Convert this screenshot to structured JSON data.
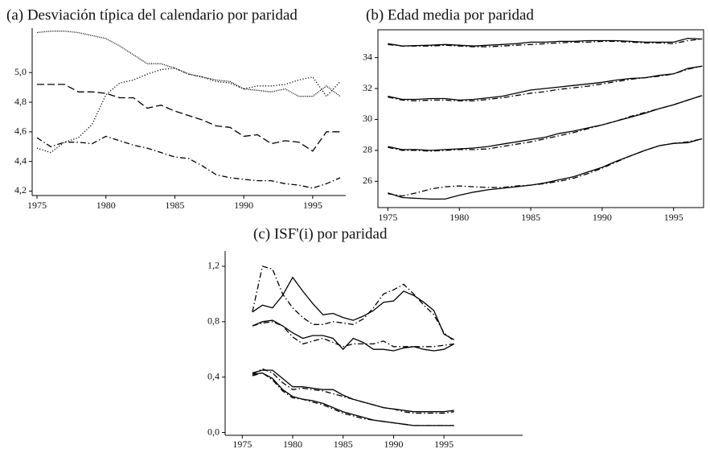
{
  "chart_data": [
    {
      "type": "line",
      "title": "(a) Desviación típica del calendario por paridad",
      "frame": false,
      "x": [
        1975,
        1976,
        1977,
        1978,
        1979,
        1980,
        1981,
        1982,
        1983,
        1984,
        1985,
        1986,
        1987,
        1988,
        1989,
        1990,
        1991,
        1992,
        1993,
        1994,
        1995,
        1996,
        1997
      ],
      "xlim": [
        1974.65,
        1997.4
      ],
      "xticks": [
        1975,
        1980,
        1985,
        1990,
        1995
      ],
      "ylim": [
        4.17,
        5.3
      ],
      "yticks": [
        {
          "value": 4.2,
          "label": "4,2"
        },
        {
          "value": 4.4,
          "label": "4,4"
        },
        {
          "value": 4.6,
          "label": "4,6"
        },
        {
          "value": 4.8,
          "label": "4,8"
        },
        {
          "value": 5.0,
          "label": "5,0"
        }
      ],
      "series": [
        {
          "color": "#000000",
          "dash": "densedot",
          "values": [
            5.27,
            5.28,
            5.28,
            5.27,
            5.25,
            5.23,
            5.18,
            5.12,
            5.06,
            5.06,
            5.03,
            4.99,
            4.97,
            4.95,
            4.94,
            4.89,
            4.88,
            4.87,
            4.89,
            4.84,
            4.84,
            4.91,
            4.84
          ]
        },
        {
          "color": "#000000",
          "dash": "dotted",
          "values": [
            4.49,
            4.46,
            4.53,
            4.56,
            4.65,
            4.85,
            4.93,
            4.95,
            4.99,
            5.02,
            5.03,
            4.99,
            4.97,
            4.94,
            4.93,
            4.89,
            4.91,
            4.91,
            4.92,
            4.95,
            4.97,
            4.84,
            4.94
          ]
        },
        {
          "color": "#000000",
          "dash": "dashed",
          "values": [
            4.92,
            4.92,
            4.92,
            4.87,
            4.87,
            4.86,
            4.83,
            4.83,
            4.76,
            4.78,
            4.74,
            4.71,
            4.68,
            4.64,
            4.63,
            4.57,
            4.58,
            4.52,
            4.54,
            4.53,
            4.47,
            4.6,
            4.6
          ]
        },
        {
          "color": "#000000",
          "dash": "dashdot",
          "values": [
            4.56,
            4.5,
            4.53,
            4.53,
            4.52,
            4.57,
            4.54,
            4.51,
            4.49,
            4.46,
            4.43,
            4.42,
            4.37,
            4.31,
            4.29,
            4.28,
            4.27,
            4.27,
            4.25,
            4.24,
            4.22,
            4.25,
            4.29
          ]
        }
      ]
    },
    {
      "type": "line",
      "title": "(b) Edad media por paridad",
      "frame": true,
      "x": [
        1975,
        1976,
        1977,
        1978,
        1979,
        1980,
        1981,
        1982,
        1983,
        1984,
        1985,
        1986,
        1987,
        1988,
        1989,
        1990,
        1991,
        1992,
        1993,
        1994,
        1995,
        1996,
        1997
      ],
      "xlim": [
        1974.3,
        1997.1
      ],
      "xticks": [
        1975,
        1980,
        1985,
        1990,
        1995
      ],
      "ylim": [
        24.3,
        35.8
      ],
      "yticks": [
        26,
        28,
        30,
        32,
        34
      ],
      "series": [
        {
          "color": "#000000",
          "dash": "solid",
          "values": [
            34.9,
            34.75,
            34.78,
            34.8,
            34.85,
            34.8,
            34.75,
            34.8,
            34.85,
            34.9,
            35.0,
            35.0,
            35.05,
            35.05,
            35.1,
            35.1,
            35.1,
            35.05,
            35.0,
            35.0,
            35.0,
            35.25,
            35.2
          ]
        },
        {
          "color": "#000000",
          "dash": "dashdot",
          "values": [
            34.85,
            34.75,
            34.75,
            34.75,
            34.8,
            34.75,
            34.7,
            34.7,
            34.75,
            34.8,
            34.85,
            34.9,
            34.95,
            35.0,
            35.0,
            35.05,
            35.05,
            35.0,
            34.95,
            34.95,
            34.9,
            35.1,
            35.2
          ]
        },
        {
          "color": "#000000",
          "dash": "solid",
          "values": [
            31.5,
            31.3,
            31.3,
            31.35,
            31.35,
            31.25,
            31.3,
            31.4,
            31.5,
            31.7,
            31.9,
            32.0,
            32.1,
            32.2,
            32.3,
            32.4,
            32.55,
            32.65,
            32.7,
            32.85,
            32.95,
            33.3,
            33.45
          ]
        },
        {
          "color": "#000000",
          "dash": "dashdot",
          "values": [
            31.45,
            31.25,
            31.2,
            31.25,
            31.25,
            31.2,
            31.2,
            31.3,
            31.4,
            31.55,
            31.7,
            31.8,
            31.95,
            32.05,
            32.15,
            32.3,
            32.45,
            32.6,
            32.7,
            32.8,
            32.95,
            33.25,
            33.45
          ]
        },
        {
          "color": "#000000",
          "dash": "solid",
          "values": [
            28.25,
            28.05,
            28.05,
            28.0,
            28.05,
            28.1,
            28.15,
            28.25,
            28.4,
            28.55,
            28.7,
            28.85,
            29.1,
            29.25,
            29.45,
            29.65,
            29.9,
            30.15,
            30.4,
            30.7,
            30.95,
            31.25,
            31.55
          ]
        },
        {
          "color": "#000000",
          "dash": "dashdot",
          "values": [
            28.2,
            28.0,
            28.0,
            27.95,
            28.0,
            28.05,
            28.05,
            28.1,
            28.25,
            28.4,
            28.55,
            28.75,
            28.95,
            29.15,
            29.4,
            29.65,
            29.9,
            30.2,
            30.45,
            30.7,
            30.95,
            31.25,
            31.55
          ]
        },
        {
          "color": "#000000",
          "dash": "solid",
          "values": [
            25.25,
            24.95,
            24.9,
            24.85,
            24.85,
            25.1,
            25.3,
            25.45,
            25.55,
            25.65,
            25.75,
            25.9,
            26.1,
            26.3,
            26.6,
            26.9,
            27.3,
            27.65,
            28.0,
            28.3,
            28.45,
            28.5,
            28.75
          ]
        },
        {
          "color": "#000000",
          "dash": "dashdot",
          "values": [
            25.2,
            25.05,
            25.25,
            25.5,
            25.65,
            25.7,
            25.65,
            25.6,
            25.6,
            25.7,
            25.75,
            25.85,
            26.0,
            26.2,
            26.5,
            26.85,
            27.25,
            27.65,
            28.0,
            28.3,
            28.45,
            28.55,
            28.75
          ]
        }
      ]
    },
    {
      "type": "line",
      "title": "(c) ISF'(i) por paridad",
      "frame": false,
      "x": [
        1976,
        1977,
        1978,
        1979,
        1980,
        1981,
        1982,
        1983,
        1984,
        1985,
        1986,
        1987,
        1988,
        1989,
        1990,
        1991,
        1992,
        1993,
        1994,
        1995,
        1996
      ],
      "xlim": [
        1973.3,
        2002.8
      ],
      "xticks": [
        1975,
        1980,
        1985,
        1990,
        1995
      ],
      "ylim": [
        -0.02,
        1.31
      ],
      "yticks": [
        {
          "value": 0.0,
          "label": "0,0"
        },
        {
          "value": 0.4,
          "label": "0,4"
        },
        {
          "value": 0.8,
          "label": "0,8"
        },
        {
          "value": 1.2,
          "label": "1,2"
        }
      ],
      "series": [
        {
          "color": "#000000",
          "dash": "dashdot",
          "values": [
            0.87,
            1.2,
            1.18,
            1.0,
            0.9,
            0.83,
            0.78,
            0.78,
            0.8,
            0.79,
            0.78,
            0.82,
            0.9,
            1.0,
            1.03,
            1.07,
            1.0,
            0.92,
            0.85,
            0.72,
            0.66
          ]
        },
        {
          "color": "#000000",
          "dash": "solid",
          "values": [
            0.87,
            0.92,
            0.9,
            0.99,
            1.12,
            1.02,
            0.93,
            0.85,
            0.86,
            0.83,
            0.81,
            0.84,
            0.88,
            0.94,
            0.95,
            1.02,
            0.99,
            0.94,
            0.88,
            0.71,
            0.67
          ]
        },
        {
          "color": "#000000",
          "dash": "solid",
          "values": [
            0.77,
            0.8,
            0.81,
            0.77,
            0.72,
            0.68,
            0.7,
            0.7,
            0.68,
            0.6,
            0.68,
            0.65,
            0.6,
            0.6,
            0.59,
            0.61,
            0.62,
            0.6,
            0.59,
            0.6,
            0.64
          ]
        },
        {
          "color": "#000000",
          "dash": "dashdot",
          "values": [
            0.77,
            0.79,
            0.8,
            0.77,
            0.69,
            0.64,
            0.66,
            0.68,
            0.65,
            0.62,
            0.64,
            0.64,
            0.64,
            0.66,
            0.62,
            0.62,
            0.62,
            0.62,
            0.62,
            0.63,
            0.64
          ]
        },
        {
          "color": "#000000",
          "dash": "solid",
          "values": [
            0.43,
            0.45,
            0.45,
            0.39,
            0.33,
            0.33,
            0.32,
            0.31,
            0.31,
            0.27,
            0.24,
            0.22,
            0.2,
            0.18,
            0.17,
            0.16,
            0.15,
            0.15,
            0.15,
            0.15,
            0.16
          ]
        },
        {
          "color": "#000000",
          "dash": "dashdot",
          "values": [
            0.42,
            0.46,
            0.43,
            0.36,
            0.31,
            0.32,
            0.31,
            0.3,
            0.28,
            0.26,
            0.24,
            0.22,
            0.2,
            0.18,
            0.17,
            0.15,
            0.14,
            0.14,
            0.14,
            0.14,
            0.15
          ]
        },
        {
          "color": "#000000",
          "dash": "solid",
          "values": [
            0.42,
            0.43,
            0.39,
            0.31,
            0.26,
            0.24,
            0.23,
            0.21,
            0.18,
            0.15,
            0.13,
            0.11,
            0.09,
            0.08,
            0.07,
            0.06,
            0.05,
            0.05,
            0.05,
            0.05,
            0.05
          ]
        },
        {
          "color": "#000000",
          "dash": "dashdot",
          "values": [
            0.41,
            0.43,
            0.38,
            0.3,
            0.25,
            0.24,
            0.22,
            0.2,
            0.17,
            0.14,
            0.12,
            0.1,
            0.09,
            0.08,
            0.07,
            0.06,
            0.05,
            0.05,
            0.05,
            0.05,
            0.05
          ]
        }
      ]
    }
  ]
}
